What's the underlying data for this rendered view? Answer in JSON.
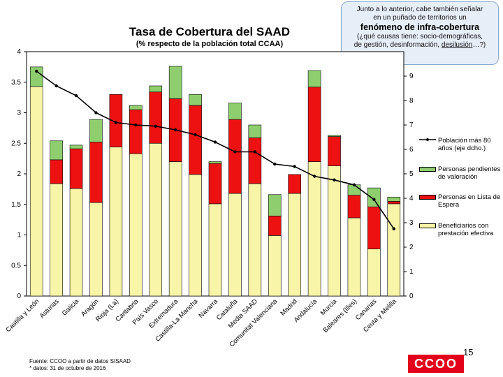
{
  "chart_data": {
    "type": "bar",
    "title": "Tasa de Cobertura del SAAD",
    "subtitle": "(% respecto de la población total CCAA)",
    "categories": [
      "Castilla y León",
      "Asturias",
      "Galicia",
      "Aragón",
      "Rioja (La)",
      "Cantabria",
      "País Vasco",
      "Extremadura",
      "Castilla-La Mancha",
      "Navarra",
      "Cataluña",
      "Media SAAD",
      "Comunitat Valenciana",
      "Madrid",
      "Andalucía",
      "Murcia",
      "Baleares (Illes)",
      "Canarias",
      "Ceuta y Melilla"
    ],
    "series": [
      {
        "name": "Beneficiarios con prestación efectiva",
        "axis": "left",
        "color": "#f8f4a8",
        "values": [
          3.43,
          1.84,
          1.76,
          1.53,
          2.44,
          2.33,
          2.5,
          2.2,
          1.99,
          1.51,
          1.68,
          1.84,
          0.99,
          1.68,
          2.2,
          2.13,
          1.28,
          0.77,
          1.51
        ]
      },
      {
        "name": "Personas en Lista de Espera",
        "axis": "left",
        "color": "#ee1111",
        "values": [
          0.0,
          0.39,
          0.65,
          0.99,
          0.86,
          0.72,
          0.84,
          1.03,
          1.13,
          0.66,
          1.21,
          0.75,
          0.32,
          0.31,
          1.22,
          0.48,
          0.37,
          0.69,
          0.04
        ]
      },
      {
        "name": "Personas pendientes de valoración",
        "axis": "left",
        "color": "#8fce6e",
        "values": [
          0.32,
          0.31,
          0.06,
          0.37,
          0.0,
          0.07,
          0.1,
          0.53,
          0.18,
          0.03,
          0.27,
          0.21,
          0.35,
          0.0,
          0.27,
          0.02,
          0.17,
          0.31,
          0.07
        ]
      },
      {
        "name": "Población más 80 años (eje dcho.)",
        "axis": "right",
        "type": "line",
        "color": "#000000",
        "values": [
          9.2,
          8.6,
          8.2,
          7.5,
          7.1,
          7.0,
          6.95,
          6.8,
          6.6,
          6.3,
          5.9,
          5.9,
          5.4,
          5.3,
          4.9,
          4.75,
          4.55,
          3.95,
          2.75
        ]
      }
    ],
    "ylim": [
      0,
      4
    ],
    "yticks": [
      "0",
      "0.5",
      "1",
      "1.5",
      "2",
      "2.5",
      "3",
      "3.5",
      "4"
    ],
    "y2lim": [
      0,
      10
    ],
    "y2ticks": [
      "0",
      "1",
      "2",
      "3",
      "4",
      "5",
      "6",
      "7",
      "8",
      "9"
    ],
    "legend_position": "right"
  },
  "callout": {
    "line1": "Junto a lo anterior, cabe también señalar",
    "line2": "en un puñado de territorios un",
    "line3": "fenómeno de infra-cobertura",
    "line4": "(¿qué causas tiene: socio-demográficas,",
    "line5a": "de gestión, desinformación, ",
    "line5b": "desilusión",
    "line5c": "…?)"
  },
  "legend": [
    {
      "label": "Población más 80 años (eje dcho.)",
      "color": "#000000",
      "kind": "line"
    },
    {
      "label": "Personas pendientes de valoración",
      "color": "#8fce6e",
      "kind": "box"
    },
    {
      "label": "Personas en Lista de Espera",
      "color": "#ee1111",
      "kind": "box"
    },
    {
      "label": "Beneficiarios con prestación efectiva",
      "color": "#f8f4a8",
      "kind": "box"
    }
  ],
  "source": {
    "line1": "Fuente: CCOO a partir de datos SISAAD",
    "line2": "* datos: 31 de octubre de 2016"
  },
  "page_number": "15",
  "logo_text": "CCOO"
}
